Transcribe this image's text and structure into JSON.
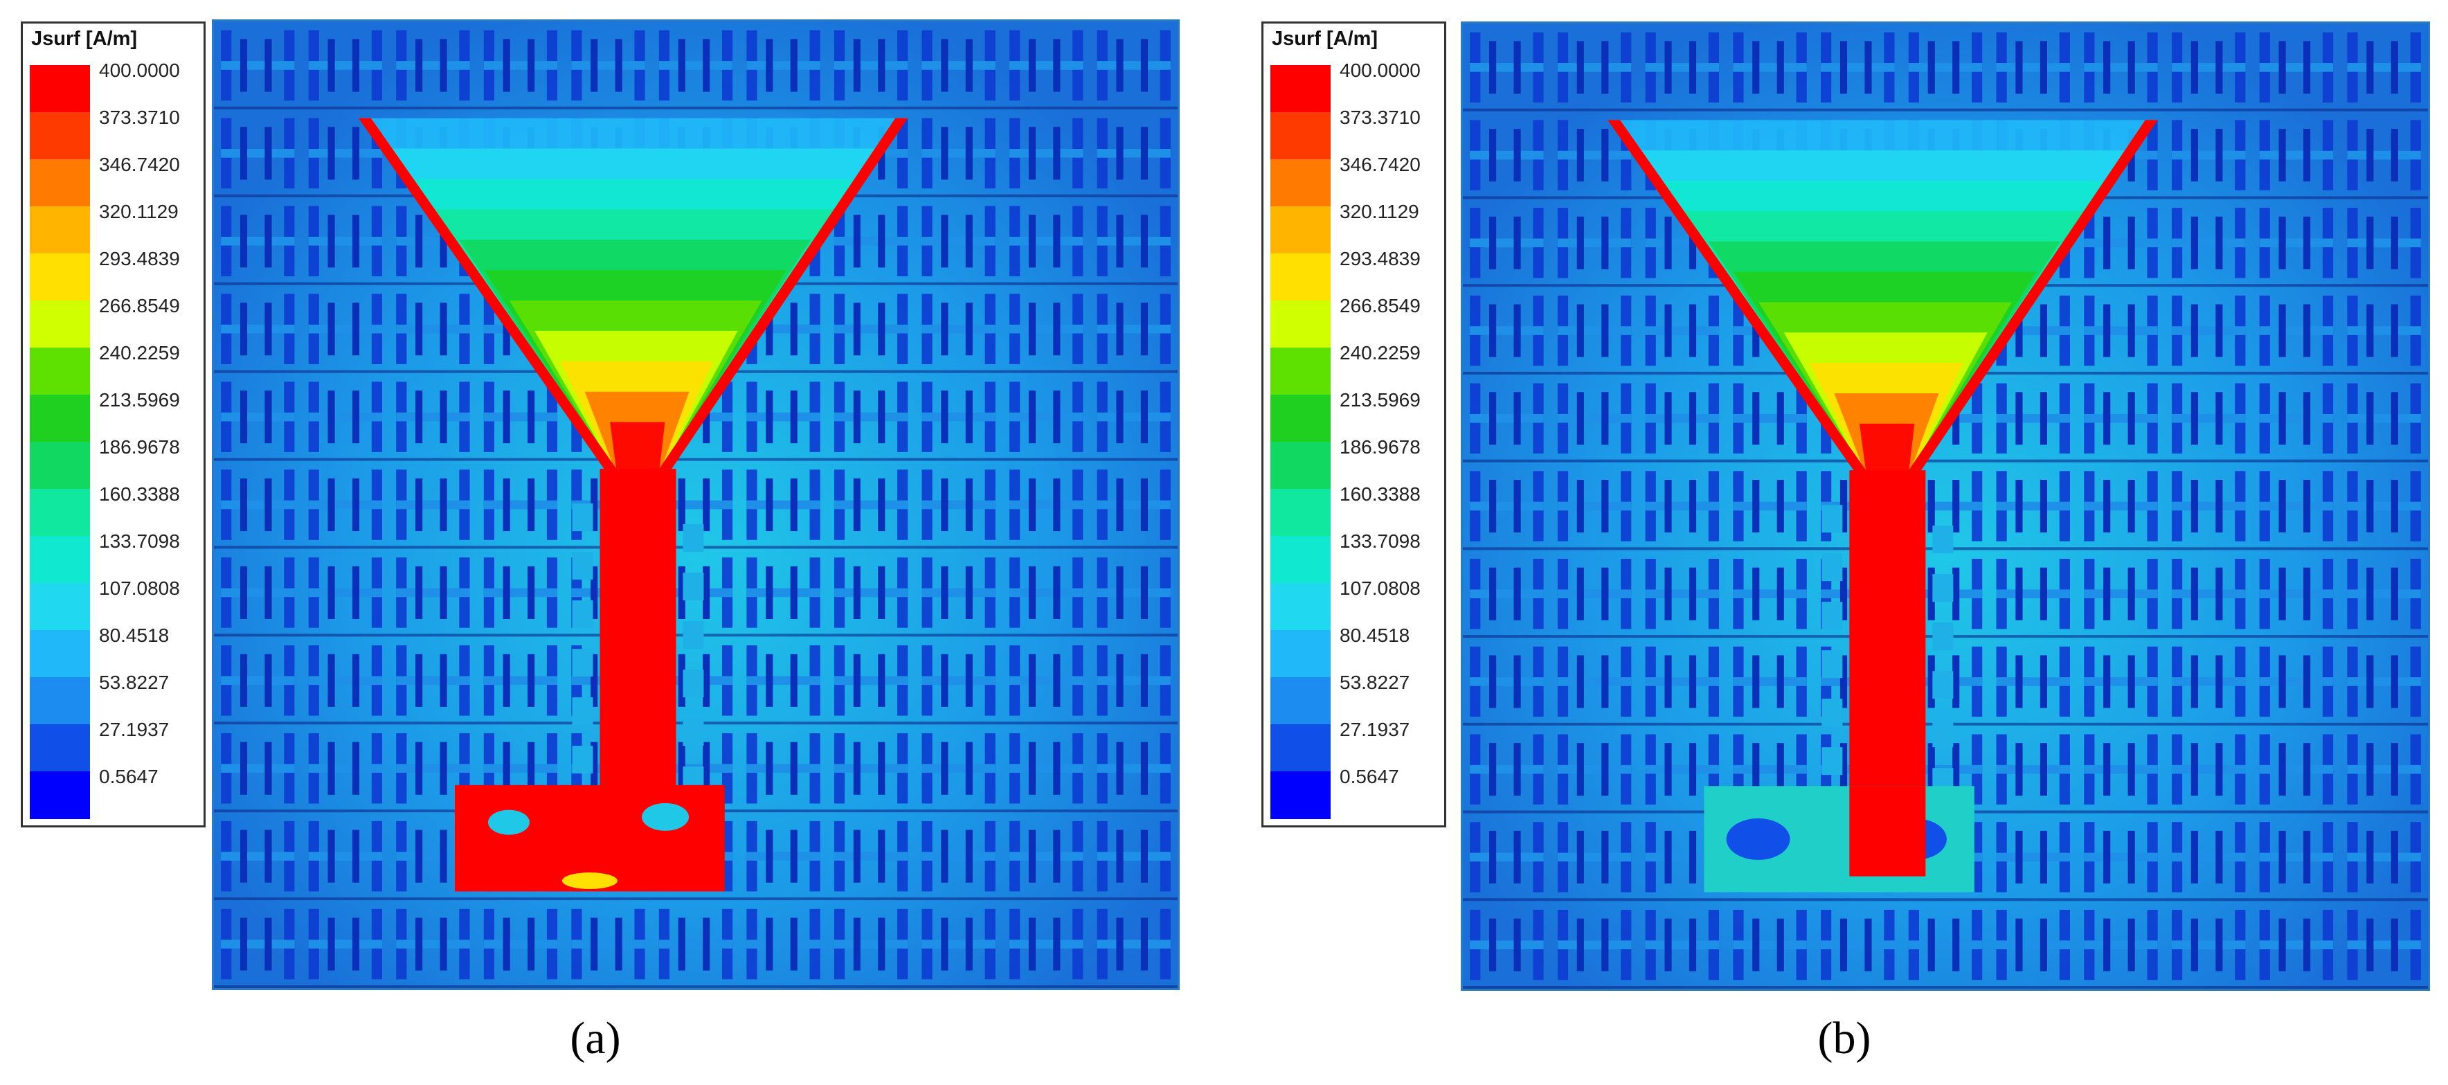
{
  "legend": {
    "title": "Jsurf [A/m]",
    "ticks": [
      "400.0000",
      "373.3710",
      "346.7420",
      "320.1129",
      "293.4839",
      "266.8549",
      "240.2259",
      "213.5969",
      "186.9678",
      "160.3388",
      "133.7098",
      "107.0808",
      "80.4518",
      "53.8227",
      "27.1937",
      "0.5647"
    ],
    "colors": [
      "#ff0000",
      "#ff3a00",
      "#ff7a00",
      "#ffb400",
      "#ffe000",
      "#cfff00",
      "#5ee000",
      "#20d020",
      "#10d860",
      "#10e8a0",
      "#10e8d0",
      "#20d8f0",
      "#20b8f8",
      "#1c8cf0",
      "#1050e8",
      "#0000ff"
    ]
  },
  "panels": [
    {
      "caption": "(a)",
      "variant": "a"
    },
    {
      "caption": "(b)",
      "variant": "b"
    }
  ],
  "colors": {
    "background_blue": "#1f6fd6",
    "element_dark": "#0d3bd0",
    "high_current": "#ff0000",
    "plot_border": "#2a7bbd"
  }
}
